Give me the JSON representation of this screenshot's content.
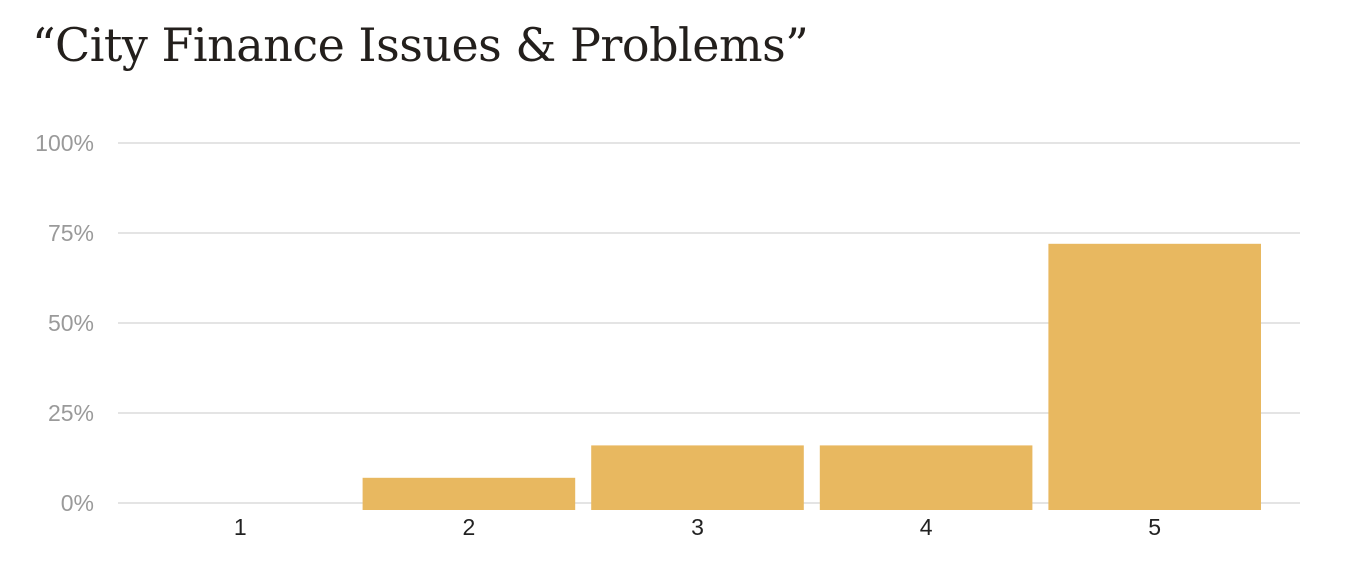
{
  "chart_data": {
    "type": "bar",
    "title": "“City Finance Issues & Problems”",
    "categories": [
      "1",
      "2",
      "3",
      "4",
      "5"
    ],
    "values": [
      0,
      7,
      16,
      16,
      72
    ],
    "yunit": "%",
    "ylim": [
      0,
      100
    ],
    "yticks": [
      0,
      25,
      50,
      75,
      100
    ],
    "ytick_labels": [
      "0%",
      "25%",
      "50%",
      "75%",
      "100%"
    ],
    "xlabel": "",
    "ylabel": "",
    "grid": true,
    "bar_color": "#e8b860",
    "grid_color": "#dcdcdc"
  }
}
